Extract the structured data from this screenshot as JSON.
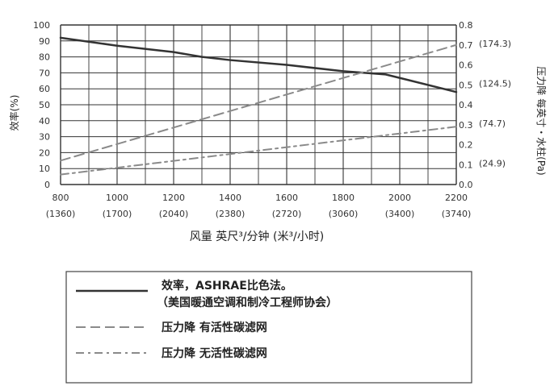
{
  "chart_data": {
    "type": "line",
    "x": [
      800,
      1000,
      1200,
      1400,
      1600,
      1800,
      2000,
      2200
    ],
    "x_sub_labels": [
      "(1360)",
      "(1700)",
      "(2040)",
      "(2380)",
      "(2720)",
      "(3060)",
      "(3400)",
      "(3740)"
    ],
    "xlabel": "风量  英尺³/分钟 (米³/小时)",
    "ylabel_left": "效率(%)",
    "ylabel_right": "压力降  每英寸・水柱(Pa)",
    "ylim_left": [
      0,
      100
    ],
    "ylim_right": [
      0.0,
      0.8
    ],
    "yticks_left": [
      0,
      10,
      20,
      30,
      40,
      50,
      60,
      70,
      80,
      90,
      100
    ],
    "yticks_right": [
      "0.0",
      "0.1",
      "0.2",
      "0.3",
      "0.4",
      "0.5",
      "0.6",
      "0.7",
      "0.8"
    ],
    "right_pa_labels": [
      {
        "at": 0.1,
        "label": "(24.9)"
      },
      {
        "at": 0.3,
        "label": "(74.7)"
      },
      {
        "at": 0.5,
        "label": "(124.5)"
      },
      {
        "at": 0.7,
        "label": "(174.3)"
      }
    ],
    "grid": true,
    "legend_position": "bottom",
    "series": [
      {
        "name": "效率，ASHRAE比色法。（美国暖通空调和制冷工程师协会）",
        "axis": "left",
        "style": "solid",
        "color": "#333333",
        "x": [
          800,
          1000,
          1200,
          1300,
          1400,
          1600,
          1800,
          1950,
          2200
        ],
        "y": [
          92,
          87,
          83,
          80,
          78,
          75,
          71,
          69,
          58
        ]
      },
      {
        "name": "压力降  有活性碳滤网",
        "axis": "right",
        "style": "dashed",
        "color": "#8a8a8a",
        "x": [
          800,
          2200
        ],
        "y": [
          0.12,
          0.7
        ]
      },
      {
        "name": "压力降  无活性碳滤网",
        "axis": "right",
        "style": "dashdot",
        "color": "#8a8a8a",
        "x": [
          800,
          2200
        ],
        "y": [
          0.05,
          0.29
        ]
      }
    ],
    "legend": [
      {
        "line1": "效率，ASHRAE比色法。",
        "line2": "（美国暖通空调和制冷工程师协会）"
      },
      {
        "line1": "压力降  有活性碳滤网"
      },
      {
        "line1": "压力降  无活性碳滤网"
      }
    ]
  }
}
